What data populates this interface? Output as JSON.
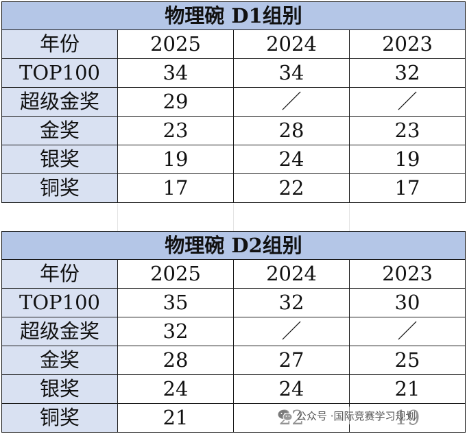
{
  "tables": [
    {
      "title": "物理碗 D1组别",
      "header": {
        "label": "年份",
        "years": [
          "2025",
          "2024",
          "2023"
        ]
      },
      "rows": [
        {
          "label": "TOP100",
          "values": [
            "34",
            "34",
            "32"
          ]
        },
        {
          "label": "超级金奖",
          "values": [
            "29",
            "／",
            "／"
          ]
        },
        {
          "label": "金奖",
          "values": [
            "23",
            "28",
            "23"
          ]
        },
        {
          "label": "银奖",
          "values": [
            "19",
            "24",
            "19"
          ]
        },
        {
          "label": "铜奖",
          "values": [
            "17",
            "22",
            "17"
          ]
        }
      ]
    },
    {
      "title": "物理碗 D2组别",
      "header": {
        "label": "年份",
        "years": [
          "2025",
          "2024",
          "2023"
        ]
      },
      "rows": [
        {
          "label": "TOP100",
          "values": [
            "35",
            "32",
            "30"
          ]
        },
        {
          "label": "超级金奖",
          "values": [
            "32",
            "／",
            "／"
          ]
        },
        {
          "label": "金奖",
          "values": [
            "28",
            "27",
            "25"
          ]
        },
        {
          "label": "银奖",
          "values": [
            "24",
            "24",
            "21"
          ]
        },
        {
          "label": "铜奖",
          "values": [
            "21",
            "22",
            "19"
          ]
        }
      ]
    }
  ],
  "watermark": {
    "prefix": "公众号 · ",
    "name": "国际竞赛学习规划",
    "icon": "wechat-icon"
  }
}
